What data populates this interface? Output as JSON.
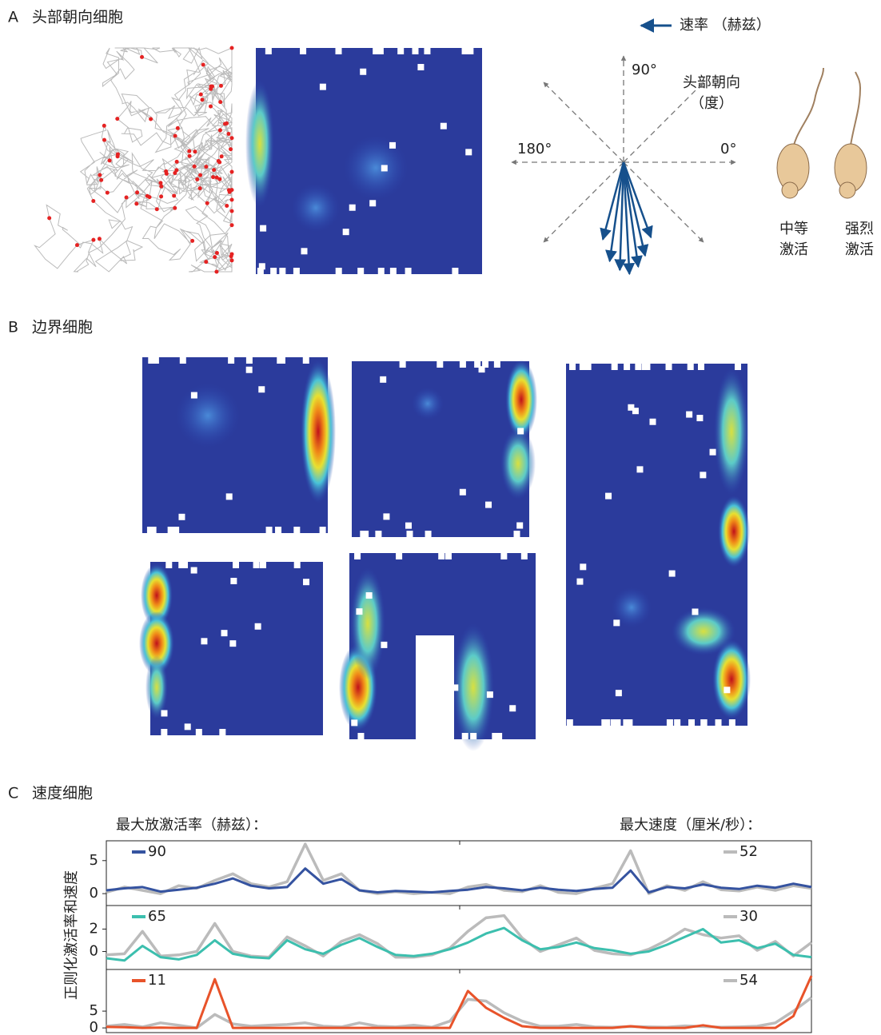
{
  "panel_a": {
    "label": "A",
    "title": "头部朝向细胞",
    "legend": "速率 （赫兹）",
    "axis_title": [
      "头部朝向",
      "（度）"
    ],
    "angles": [
      "90°",
      "180°",
      "0°"
    ],
    "mice": [
      [
        "中等",
        "激活"
      ],
      [
        "强烈",
        "激活"
      ]
    ]
  },
  "panel_b": {
    "label": "B",
    "title": "边界细胞"
  },
  "panel_c": {
    "label": "C",
    "title": "速度细胞",
    "rate_header": "最大放激活率（赫兹）：",
    "speed_header": "最大速度（厘米/秒）：",
    "y_label": "正则化激活率和速度"
  },
  "chart_data": [
    {
      "type": "line",
      "ylim": [
        -1.8,
        8
      ],
      "yticks": [
        0,
        5
      ],
      "series": [
        {
          "name": "90",
          "color": "#3553a0",
          "values": [
            0.5,
            0.8,
            1.0,
            0.3,
            0.6,
            0.9,
            1.5,
            2.3,
            1.2,
            0.8,
            1.0,
            3.8,
            1.5,
            2.2,
            0.5,
            0.2,
            0.4,
            0.3,
            0.2,
            0.4,
            0.6,
            1.0,
            0.8,
            0.5,
            0.9,
            0.6,
            0.4,
            0.7,
            0.9,
            3.5,
            0.2,
            1.0,
            0.8,
            1.4,
            0.9,
            0.7,
            1.2,
            0.9,
            1.5,
            1.0
          ]
        },
        {
          "name": "52",
          "color": "#bbbbbb",
          "values": [
            0.2,
            1.0,
            0.5,
            0.0,
            1.2,
            0.8,
            2.0,
            3.0,
            1.5,
            1.0,
            1.8,
            7.5,
            2.0,
            3.0,
            0.5,
            0.0,
            0.3,
            0.0,
            0.2,
            0.0,
            1.0,
            1.4,
            0.5,
            0.3,
            1.2,
            0.2,
            0.0,
            0.8,
            1.5,
            6.5,
            0.0,
            1.2,
            0.5,
            1.8,
            0.6,
            0.4,
            1.0,
            0.5,
            1.2,
            0.8
          ]
        }
      ]
    },
    {
      "type": "line",
      "ylim": [
        -1.6,
        4.1
      ],
      "yticks": [
        0,
        2
      ],
      "series": [
        {
          "name": "65",
          "color": "#3cbfae",
          "values": [
            -0.6,
            -0.8,
            0.5,
            -0.5,
            -0.7,
            -0.3,
            1.0,
            -0.2,
            -0.5,
            -0.6,
            1.0,
            0.2,
            -0.2,
            0.6,
            1.2,
            0.4,
            -0.3,
            -0.4,
            -0.2,
            0.2,
            0.8,
            1.6,
            2.1,
            1.0,
            0.2,
            0.4,
            0.8,
            0.3,
            0.1,
            -0.2,
            0.0,
            0.6,
            1.3,
            2.0,
            0.8,
            1.0,
            0.3,
            0.7,
            -0.3,
            -0.5
          ]
        },
        {
          "name": "30",
          "color": "#bbbbbb",
          "values": [
            -0.3,
            -0.2,
            1.8,
            -0.4,
            -0.3,
            0.0,
            2.5,
            0.0,
            -0.4,
            -0.5,
            1.3,
            0.5,
            -0.4,
            0.9,
            1.5,
            0.7,
            -0.5,
            -0.5,
            -0.3,
            0.3,
            1.8,
            3.0,
            3.2,
            1.2,
            0.0,
            0.6,
            1.2,
            0.1,
            -0.2,
            -0.3,
            0.2,
            1.0,
            2.0,
            1.5,
            1.2,
            1.4,
            0.1,
            0.9,
            -0.4,
            0.8
          ]
        }
      ]
    },
    {
      "type": "line",
      "ylim": [
        -1.4,
        17.4
      ],
      "yticks": [
        0,
        5
      ],
      "series": [
        {
          "name": "11",
          "color": "#e8532a",
          "values": [
            0.3,
            0.2,
            0.0,
            0.1,
            0.0,
            0.0,
            14.5,
            0.0,
            0.0,
            0.0,
            0.0,
            0.0,
            0.0,
            0.0,
            0.0,
            0.0,
            0.0,
            0.0,
            0.0,
            0.0,
            11.0,
            6.0,
            3.0,
            0.5,
            0.0,
            0.0,
            0.0,
            0.0,
            0.0,
            0.5,
            0.0,
            0.0,
            0.0,
            0.8,
            0.0,
            0.0,
            0.0,
            0.0,
            3.5,
            15.5
          ]
        },
        {
          "name": "54",
          "color": "#bbbbbb",
          "values": [
            0.5,
            1.0,
            0.3,
            1.5,
            0.8,
            0.0,
            4.0,
            1.2,
            0.5,
            0.8,
            1.0,
            1.5,
            0.5,
            0.3,
            1.5,
            0.5,
            0.3,
            0.8,
            0.2,
            2.0,
            8.5,
            8.0,
            4.5,
            2.0,
            0.5,
            0.5,
            1.0,
            0.3,
            0.2,
            0.4,
            0.3,
            0.2,
            0.6,
            0.4,
            0.2,
            0.3,
            0.5,
            1.5,
            5.0,
            9.0
          ]
        }
      ]
    }
  ]
}
